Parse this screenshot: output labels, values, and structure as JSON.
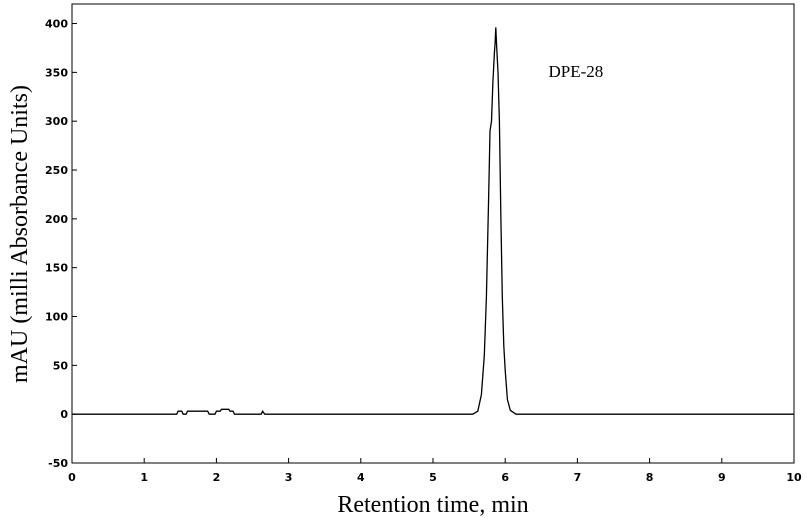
{
  "chart_data": {
    "type": "line",
    "title": "",
    "xlabel": "Retention time, min",
    "ylabel": "mAU (milli Absorbance Units)",
    "xlim": [
      0,
      10
    ],
    "ylim": [
      -50,
      420
    ],
    "x_ticks": [
      0,
      1,
      2,
      3,
      4,
      5,
      6,
      7,
      8,
      9,
      10
    ],
    "y_ticks": [
      -50,
      0,
      50,
      100,
      150,
      200,
      250,
      300,
      350,
      400
    ],
    "grid": false,
    "legend": "none",
    "annotations": [
      {
        "text": "DPE-28",
        "x": 6.6,
        "y": 345
      }
    ],
    "series": [
      {
        "color": "#000000",
        "points": [
          [
            0.0,
            0
          ],
          [
            1.45,
            0
          ],
          [
            1.47,
            3
          ],
          [
            1.52,
            3
          ],
          [
            1.54,
            0
          ],
          [
            1.58,
            0
          ],
          [
            1.6,
            3
          ],
          [
            1.88,
            3
          ],
          [
            1.9,
            0
          ],
          [
            1.98,
            0
          ],
          [
            2.0,
            3
          ],
          [
            2.05,
            3
          ],
          [
            2.07,
            5
          ],
          [
            2.17,
            5
          ],
          [
            2.19,
            3
          ],
          [
            2.23,
            3
          ],
          [
            2.25,
            0
          ],
          [
            2.62,
            0
          ],
          [
            2.64,
            3
          ],
          [
            2.67,
            0
          ],
          [
            5.55,
            0
          ],
          [
            5.62,
            3
          ],
          [
            5.67,
            20
          ],
          [
            5.71,
            60
          ],
          [
            5.74,
            120
          ],
          [
            5.77,
            220
          ],
          [
            5.79,
            290
          ],
          [
            5.81,
            300
          ],
          [
            5.83,
            340
          ],
          [
            5.85,
            370
          ],
          [
            5.86,
            380
          ],
          [
            5.87,
            396
          ],
          [
            5.88,
            380
          ],
          [
            5.9,
            350
          ],
          [
            5.92,
            300
          ],
          [
            5.94,
            200
          ],
          [
            5.96,
            120
          ],
          [
            5.98,
            70
          ],
          [
            6.0,
            45
          ],
          [
            6.03,
            15
          ],
          [
            6.07,
            4
          ],
          [
            6.15,
            0
          ],
          [
            10.0,
            0
          ]
        ]
      }
    ]
  }
}
